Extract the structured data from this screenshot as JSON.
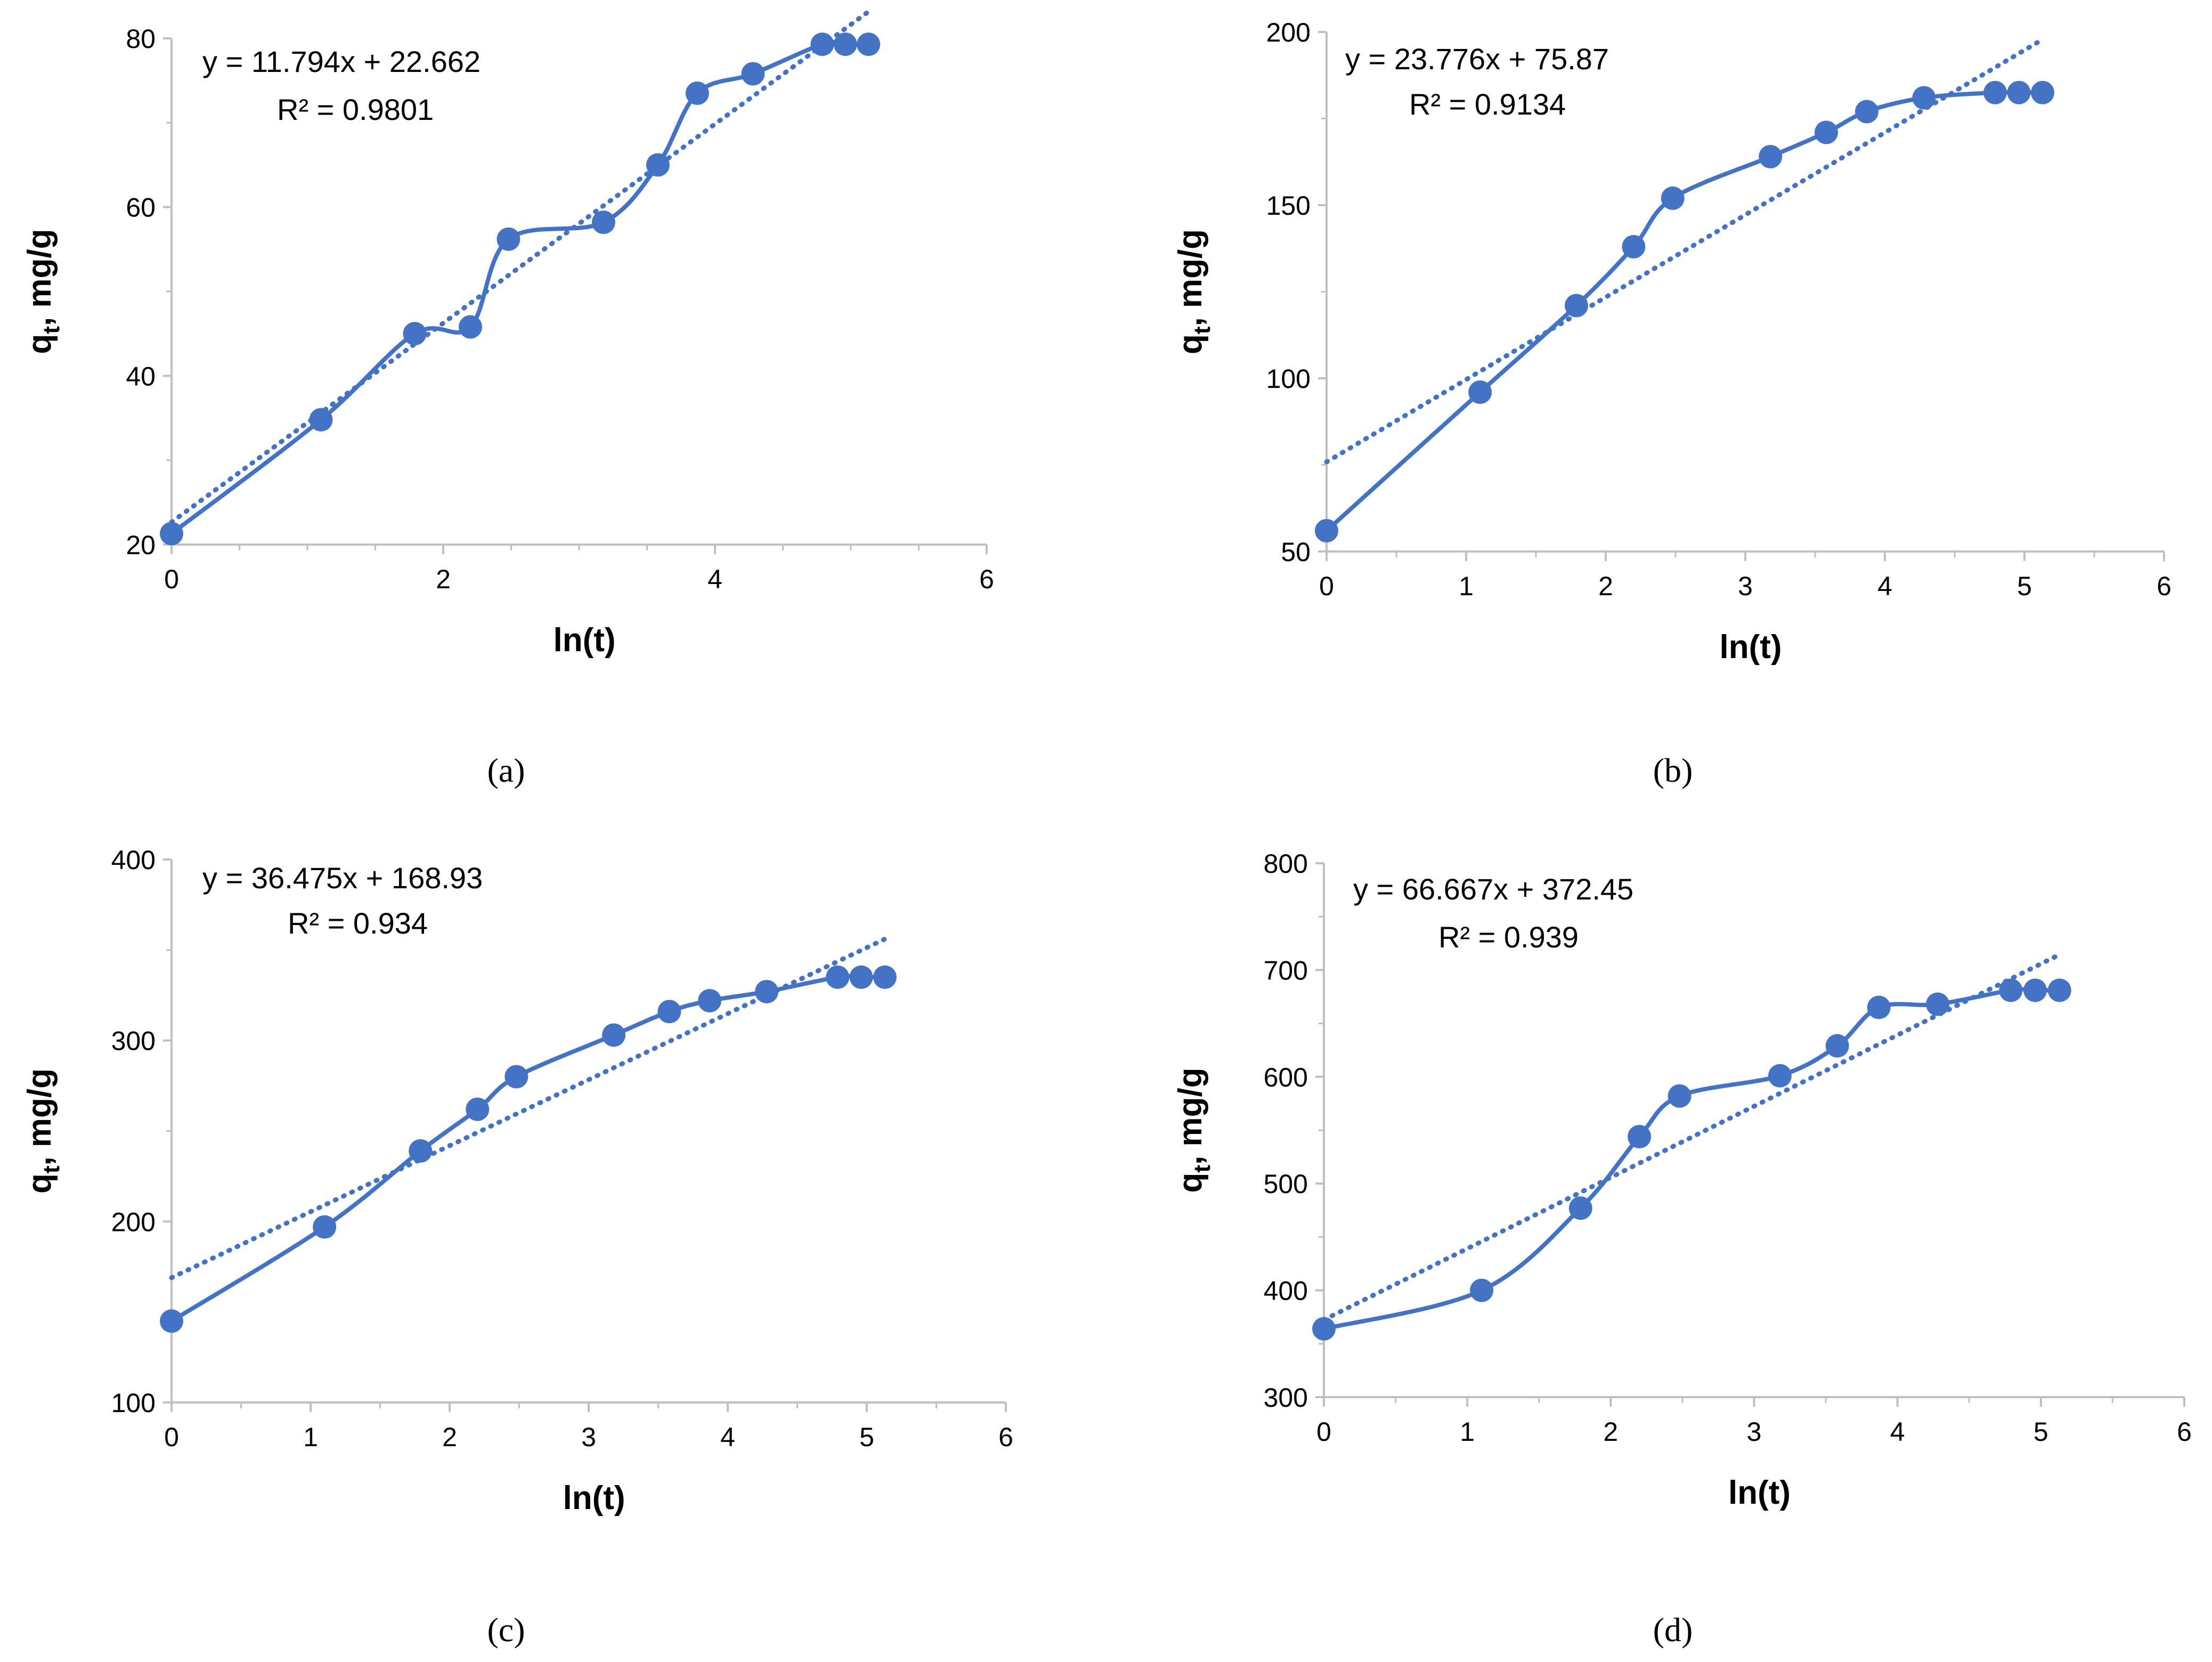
{
  "colors": {
    "series": "#4472C4",
    "axis": "#BFBFBF"
  },
  "chart_data": [
    {
      "type": "line",
      "panel_label": "(a)",
      "xlabel": "ln(t)",
      "ylabel": {
        "main": "q",
        "sub": "t",
        "tail": ", mg/g"
      },
      "xlim": [
        0,
        6
      ],
      "ylim": [
        20,
        80
      ],
      "xticks": [
        0,
        2,
        4,
        6
      ],
      "yticks": [
        20,
        40,
        60,
        80
      ],
      "equation": "y = 11.794x + 22.662",
      "r2": "R² = 0.9801",
      "trendline": {
        "slope": 11.794,
        "intercept": 22.662
      },
      "x": [
        0,
        1.1,
        1.79,
        2.2,
        2.48,
        3.18,
        3.58,
        3.87,
        4.28,
        4.79,
        4.96,
        5.13
      ],
      "y": [
        21.3,
        34.8,
        45.0,
        45.8,
        56.2,
        58.2,
        65.0,
        73.5,
        75.8,
        79.3,
        79.3,
        79.3
      ]
    },
    {
      "type": "line",
      "panel_label": "(b)",
      "xlabel": "ln(t)",
      "ylabel": {
        "main": "q",
        "sub": "t",
        "tail": ", mg/g"
      },
      "xlim": [
        0,
        6
      ],
      "ylim": [
        50,
        200
      ],
      "xticks": [
        0,
        1,
        2,
        3,
        4,
        5,
        6
      ],
      "yticks": [
        50,
        100,
        150,
        200
      ],
      "equation": "y = 23.776x + 75.87",
      "r2": "R² = 0.9134",
      "trendline": {
        "slope": 23.776,
        "intercept": 75.87
      },
      "x": [
        0,
        1.1,
        1.79,
        2.2,
        2.48,
        3.18,
        3.58,
        3.87,
        4.28,
        4.79,
        4.96,
        5.13
      ],
      "y": [
        56,
        96,
        121,
        138,
        152,
        164,
        171,
        177,
        181,
        182.5,
        182.5,
        182.5
      ]
    },
    {
      "type": "line",
      "panel_label": "(c)",
      "xlabel": "ln(t)",
      "ylabel": {
        "main": "q",
        "sub": "t",
        "tail": ", mg/g"
      },
      "xlim": [
        0,
        6
      ],
      "ylim": [
        100,
        400
      ],
      "xticks": [
        0,
        1,
        2,
        3,
        4,
        5,
        6
      ],
      "yticks": [
        100,
        200,
        300,
        400
      ],
      "equation": "y = 36.475x + 168.93",
      "r2": "R² = 0.934",
      "trendline": {
        "slope": 36.475,
        "intercept": 168.93
      },
      "x": [
        0,
        1.1,
        1.79,
        2.2,
        2.48,
        3.18,
        3.58,
        3.87,
        4.28,
        4.79,
        4.96,
        5.13
      ],
      "y": [
        145,
        197,
        239,
        262,
        280,
        303,
        316,
        322,
        327,
        335,
        335,
        335
      ]
    },
    {
      "type": "line",
      "panel_label": "(d)",
      "xlabel": "ln(t)",
      "ylabel": {
        "main": "q",
        "sub": "t",
        "tail": ", mg/g"
      },
      "xlim": [
        0,
        6
      ],
      "ylim": [
        300,
        800
      ],
      "xticks": [
        0,
        1,
        2,
        3,
        4,
        5,
        6
      ],
      "yticks": [
        300,
        400,
        500,
        600,
        700,
        800
      ],
      "equation": "y = 66.667x + 372.45",
      "r2": "R² = 0.939",
      "trendline": {
        "slope": 66.667,
        "intercept": 372.45
      },
      "x": [
        0,
        1.1,
        1.79,
        2.2,
        2.48,
        3.18,
        3.58,
        3.87,
        4.28,
        4.79,
        4.96,
        5.13
      ],
      "y": [
        364,
        400,
        477,
        544,
        582,
        601,
        629,
        665,
        668,
        681,
        681,
        681
      ]
    }
  ]
}
